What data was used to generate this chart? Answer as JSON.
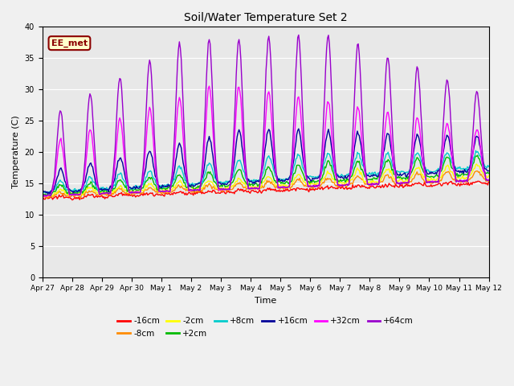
{
  "title": "Soil/Water Temperature Set 2",
  "xlabel": "Time",
  "ylabel": "Temperature (C)",
  "ylim": [
    0,
    40
  ],
  "yticks": [
    0,
    5,
    10,
    15,
    20,
    25,
    30,
    35,
    40
  ],
  "plot_bg": "#e8e8e8",
  "fig_bg": "#f0f0f0",
  "annotation_text": "EE_met",
  "annotation_box_color": "#ffffcc",
  "annotation_box_edge": "#8b0000",
  "series_order": [
    "-16cm",
    "-8cm",
    "-2cm",
    "+2cm",
    "+8cm",
    "+16cm",
    "+32cm",
    "+64cm"
  ],
  "series_colors": {
    "-16cm": "#ff0000",
    "-8cm": "#ff8c00",
    "-2cm": "#ffff00",
    "+2cm": "#00bb00",
    "+8cm": "#00cccc",
    "+16cm": "#000099",
    "+32cm": "#ff00ff",
    "+64cm": "#9900cc"
  },
  "xtick_labels": [
    "Apr 27",
    "Apr 28",
    "Apr 29",
    "Apr 30",
    "May 1",
    "May 2",
    "May 3",
    "May 4",
    "May 5",
    "May 6",
    "May 7",
    "May 8",
    "May 9",
    "May 10",
    "May 11",
    "May 12"
  ],
  "n_pts": 480,
  "days": 15
}
